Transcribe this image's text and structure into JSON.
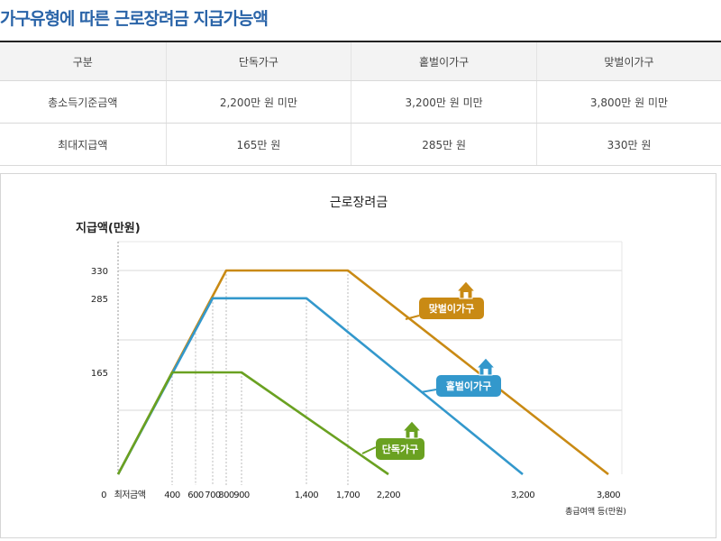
{
  "page_title": "가구유형에 따른 근로장려금 지급가능액",
  "table": {
    "headers": [
      "구분",
      "단독가구",
      "홑벌이가구",
      "맞벌이가구"
    ],
    "rows": [
      [
        "총소득기준금액",
        "2,200만 원 미만",
        "3,200만 원 미만",
        "3,800만 원 미만"
      ],
      [
        "최대지급액",
        "165만 원",
        "285만 원",
        "330만 원"
      ]
    ]
  },
  "chart_data": {
    "type": "line",
    "title": "근로장려금",
    "ylabel": "지급액(만원)",
    "xlabel": "총급여액 등(만원)",
    "origin_label": "0",
    "origin_sub_label": "최저금액",
    "x_ticks": [
      400,
      600,
      700,
      800,
      900,
      1400,
      1700,
      2200,
      3200,
      3800
    ],
    "x_tick_labels": [
      "400",
      "600",
      "700",
      "800",
      "900",
      "1,400",
      "1,700",
      "2,200",
      "3,200",
      "3,800"
    ],
    "y_ticks": [
      165,
      285,
      330
    ],
    "y_tick_labels": [
      "165",
      "285",
      "330"
    ],
    "ylim": [
      0,
      330
    ],
    "grid": true,
    "series": [
      {
        "name": "맞벌이가구",
        "color": "#c98a14",
        "points": [
          [
            0,
            0
          ],
          [
            800,
            330
          ],
          [
            1700,
            330
          ],
          [
            3800,
            0
          ]
        ]
      },
      {
        "name": "홑벌이가구",
        "color": "#3398cc",
        "points": [
          [
            0,
            0
          ],
          [
            700,
            285
          ],
          [
            1400,
            285
          ],
          [
            3200,
            0
          ]
        ]
      },
      {
        "name": "단독가구",
        "color": "#6aa121",
        "points": [
          [
            0,
            0
          ],
          [
            400,
            165
          ],
          [
            900,
            165
          ],
          [
            2200,
            0
          ]
        ]
      }
    ]
  }
}
